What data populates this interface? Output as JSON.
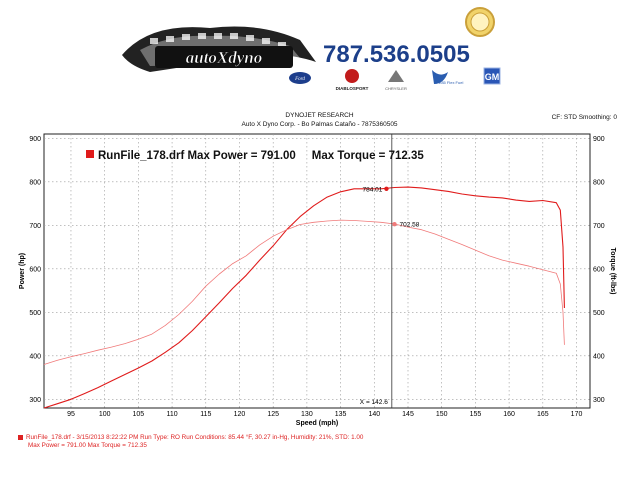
{
  "header": {
    "logo_text": "autoXdyno",
    "phone": "787.536.0505",
    "sponsors": [
      {
        "name": "Ford",
        "label": "Ford"
      },
      {
        "name": "Diablosport",
        "label": "DIABLOSPORT"
      },
      {
        "name": "Chrysler",
        "label": "CHRYSLER"
      },
      {
        "name": "Flex Fuel",
        "label": "E85 Flex Fuel"
      },
      {
        "name": "GM",
        "label": "GM"
      }
    ],
    "title": "DYNOJET RESEARCH",
    "subtitle": "Auto X Dyno Corp. - Bo Palmas Cataño - 7875360505",
    "cf_info": "CF: STD  Smoothing: 0"
  },
  "chart_data": {
    "type": "line",
    "legend_text": "RunFile_178.drf Max Power = 791.00     Max Torque = 712.35",
    "xlabel": "Speed (mph)",
    "ylabel_left": "Power (hp)",
    "ylabel_right": "Torque (ft-lbs)",
    "xlim": [
      91,
      172
    ],
    "ylim": [
      280,
      910
    ],
    "x_ticks": [
      95,
      100,
      105,
      110,
      115,
      120,
      125,
      130,
      135,
      140,
      145,
      150,
      155,
      160,
      165,
      170
    ],
    "y_ticks": [
      300,
      400,
      500,
      600,
      700,
      800,
      900
    ],
    "cursor": {
      "x": 142.6,
      "label": "X = 142.6"
    },
    "annotations": [
      {
        "label": "784.01",
        "x": 141.8,
        "y": 784.01,
        "series": "power"
      },
      {
        "label": "702.58",
        "x": 143.0,
        "y": 702.58,
        "series": "torque"
      }
    ],
    "series": [
      {
        "name": "Power",
        "color": "#e01b1b",
        "x": [
          91,
          93,
          95,
          97,
          99,
          101,
          103,
          105,
          107,
          109,
          111,
          113,
          115,
          117,
          119,
          121,
          123,
          125,
          127,
          129,
          131,
          133,
          135,
          137,
          139,
          141,
          143,
          145,
          147,
          149,
          151,
          153,
          155,
          157,
          159,
          161,
          163,
          165,
          167,
          167.6,
          168,
          168.2
        ],
        "y": [
          280,
          290,
          300,
          313,
          327,
          342,
          357,
          372,
          388,
          408,
          430,
          458,
          490,
          522,
          555,
          585,
          620,
          653,
          690,
          720,
          745,
          765,
          777,
          784,
          784,
          784,
          787,
          788,
          786,
          782,
          778,
          772,
          768,
          765,
          763,
          758,
          755,
          757,
          752,
          735,
          650,
          510
        ]
      },
      {
        "name": "Torque",
        "color": "#f07a7a",
        "x": [
          91,
          93,
          95,
          97,
          99,
          101,
          103,
          105,
          107,
          109,
          111,
          113,
          115,
          117,
          119,
          121,
          123,
          125,
          127,
          129,
          131,
          133,
          135,
          137,
          139,
          141,
          143,
          145,
          147,
          149,
          151,
          153,
          155,
          157,
          159,
          161,
          163,
          165,
          167,
          167.6,
          168,
          168.2
        ],
        "y": [
          380,
          390,
          398,
          405,
          413,
          420,
          428,
          438,
          450,
          470,
          495,
          525,
          560,
          588,
          612,
          630,
          655,
          675,
          690,
          702,
          707,
          710,
          712,
          711,
          709,
          707,
          703,
          696,
          690,
          680,
          668,
          656,
          643,
          630,
          620,
          613,
          606,
          598,
          590,
          565,
          500,
          425
        ]
      }
    ]
  },
  "footer": {
    "line1": "RunFile_178.drf - 3/15/2013 8:22:22 PM  Run Type: RO  Run Conditions: 85.44 °F, 30.27 in-Hg,  Humidity:  21%, STD: 1.00",
    "line2": "Max Power = 791.00  Max Torque = 712.35"
  }
}
